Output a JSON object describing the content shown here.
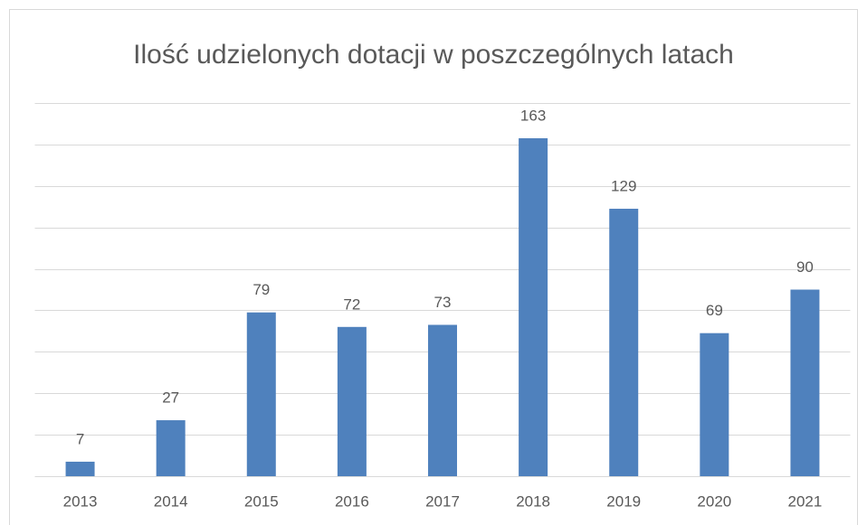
{
  "chart_data": {
    "type": "bar",
    "title": "Ilość udzielonych dotacji w poszczególnych latach",
    "categories": [
      "2013",
      "2014",
      "2015",
      "2016",
      "2017",
      "2018",
      "2019",
      "2020",
      "2021"
    ],
    "values": [
      7,
      27,
      79,
      72,
      73,
      163,
      129,
      69,
      90
    ],
    "color": "#4f81bd",
    "ylim": [
      0,
      180
    ],
    "yticks": [
      0,
      20,
      40,
      60,
      80,
      100,
      120,
      140,
      160,
      180
    ],
    "grid": true
  }
}
